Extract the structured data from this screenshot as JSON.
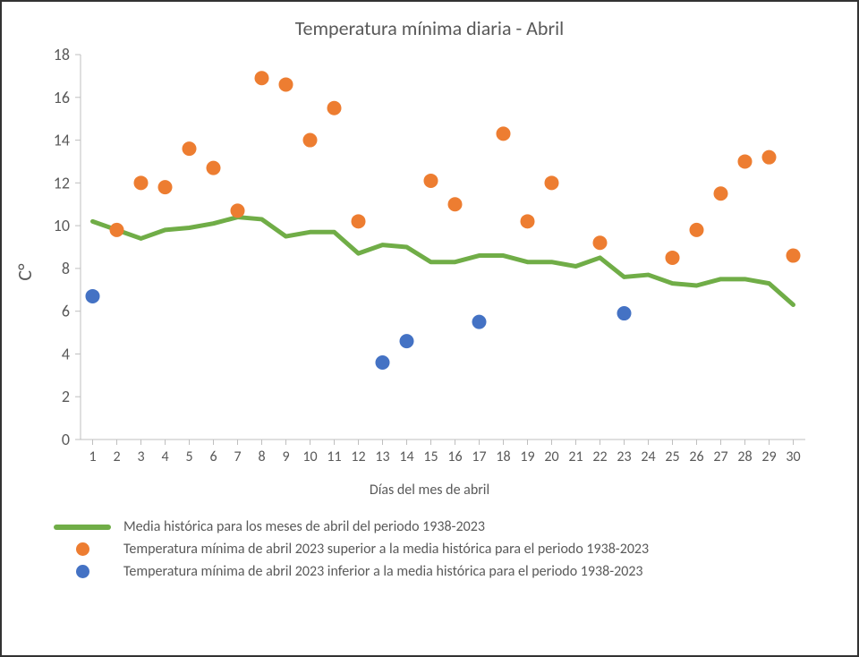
{
  "chart": {
    "type": "line+scatter",
    "title": "Temperatura mínima diaria - Abril",
    "title_fontsize": 22,
    "ylabel": "C°",
    "xlabel": "Días del mes de abril",
    "label_fontsize": 16,
    "background_color": "#ffffff",
    "border_color": "#333333",
    "axis_color": "#bfbfbf",
    "tick_color": "#595959",
    "xlim": [
      0.5,
      30.5
    ],
    "ylim": [
      0,
      18
    ],
    "ytick_step": 2,
    "xticks": [
      1,
      2,
      3,
      4,
      5,
      6,
      7,
      8,
      9,
      10,
      11,
      12,
      13,
      14,
      15,
      16,
      17,
      18,
      19,
      20,
      21,
      22,
      23,
      24,
      25,
      26,
      27,
      28,
      29,
      30
    ],
    "series_line": {
      "name": "Media histórica para los meses de abril del periodo 1938-2023",
      "color": "#70ad47",
      "width": 5,
      "x": [
        1,
        2,
        3,
        4,
        5,
        6,
        7,
        8,
        9,
        10,
        11,
        12,
        13,
        14,
        15,
        16,
        17,
        18,
        19,
        20,
        21,
        22,
        23,
        24,
        25,
        26,
        27,
        28,
        29,
        30
      ],
      "y": [
        10.2,
        9.8,
        9.4,
        9.8,
        9.9,
        10.1,
        10.4,
        10.3,
        9.5,
        9.7,
        9.7,
        8.7,
        9.1,
        9.0,
        8.3,
        8.3,
        8.6,
        8.6,
        8.3,
        8.3,
        8.1,
        8.5,
        7.6,
        7.7,
        7.3,
        7.2,
        7.5,
        7.5,
        7.3,
        6.3
      ]
    },
    "series_above": {
      "name": "Temperatura mínima de abril 2023 superior a la media histórica para el periodo 1938-2023",
      "color": "#ed7d31",
      "marker_radius": 8,
      "x": [
        2,
        3,
        4,
        5,
        6,
        7,
        8,
        9,
        10,
        11,
        12,
        15,
        16,
        18,
        19,
        20,
        22,
        25,
        26,
        27,
        28,
        29,
        30
      ],
      "y": [
        9.8,
        12.0,
        11.8,
        13.6,
        12.7,
        10.7,
        16.9,
        16.6,
        14.0,
        15.5,
        10.2,
        12.1,
        11.0,
        14.3,
        10.2,
        12.0,
        9.2,
        8.5,
        9.8,
        11.5,
        13.0,
        13.2,
        8.6
      ]
    },
    "series_below": {
      "name": "Temperatura mínima de abril 2023 inferior a la media histórica para el periodo 1938-2023",
      "color": "#4472c4",
      "marker_radius": 8,
      "x": [
        1,
        13,
        14,
        17,
        23
      ],
      "y": [
        6.7,
        3.6,
        4.6,
        5.5,
        5.9
      ]
    }
  },
  "legend": {
    "items": [
      {
        "kind": "line",
        "color": "#70ad47",
        "label": "Media histórica para los meses de abril del periodo 1938-2023"
      },
      {
        "kind": "dot",
        "color": "#ed7d31",
        "label": "Temperatura mínima de abril 2023 superior a la media histórica para el periodo 1938-2023"
      },
      {
        "kind": "dot",
        "color": "#4472c4",
        "label": "Temperatura mínima de abril 2023 inferior a la media histórica para el periodo 1938-2023"
      }
    ]
  }
}
